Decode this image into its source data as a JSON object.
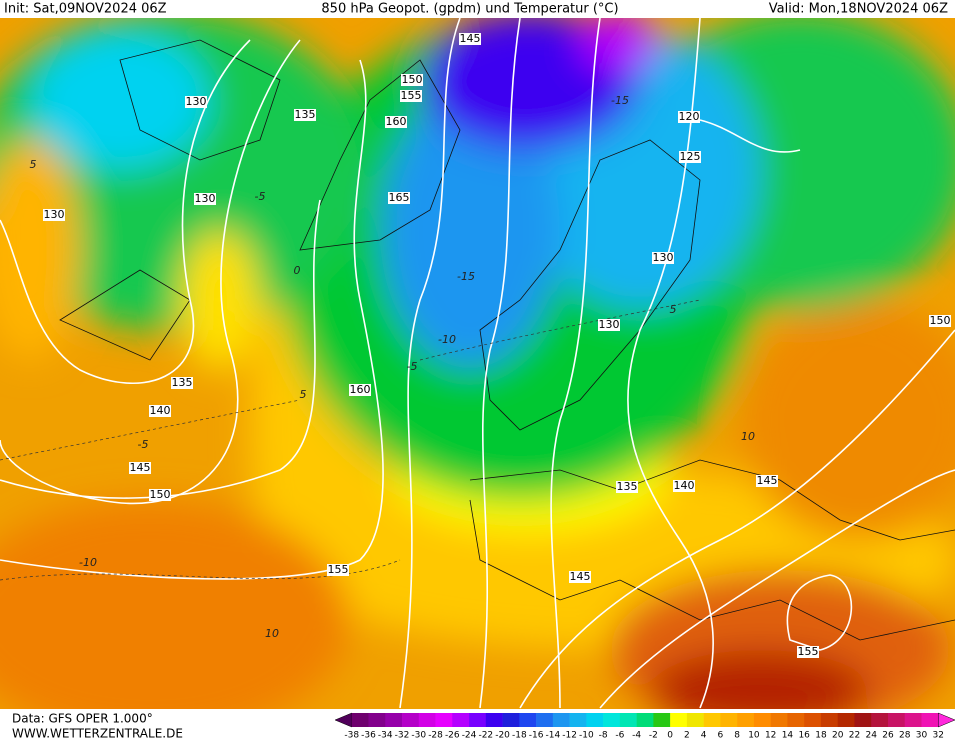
{
  "header": {
    "init": "Init: Sat,09NOV2024 06Z",
    "title": "850 hPa Geopot. (gpdm) und Temperatur (°C)",
    "valid": "Valid: Mon,18NOV2024 06Z"
  },
  "map": {
    "contour_labels": [
      "145",
      "150",
      "155",
      "160",
      "165",
      "130",
      "135",
      "130",
      "130",
      "120",
      "125",
      "130",
      "130",
      "150",
      "135",
      "140",
      "145",
      "150",
      "160",
      "135",
      "140",
      "145",
      "155",
      "145",
      "155"
    ],
    "isotherm_labels": [
      "5",
      "-5",
      "0",
      "-15",
      "-15",
      "-10",
      "-5",
      "5",
      "-5",
      "5",
      "-10",
      "10",
      "10"
    ]
  },
  "footer": {
    "data": "Data: GFS OPER 1.000°",
    "site": "WWW.WETTERZENTRALE.DE"
  },
  "colorbar": {
    "labels": [
      -38,
      -36,
      -34,
      -32,
      -30,
      -28,
      -26,
      -24,
      -22,
      -20,
      -18,
      -16,
      -14,
      -12,
      -10,
      -8,
      -6,
      -4,
      -2,
      0,
      2,
      4,
      6,
      8,
      10,
      12,
      14,
      16,
      18,
      20,
      22,
      24,
      26,
      28,
      30,
      32
    ],
    "colors": [
      "#50005a",
      "#6e006e",
      "#82008c",
      "#9600aa",
      "#b400c8",
      "#d200e6",
      "#e600ff",
      "#b400ff",
      "#7800ff",
      "#3c00f0",
      "#1e1edc",
      "#1e46f0",
      "#1e6ef0",
      "#1e96f0",
      "#14b4f0",
      "#00d2f0",
      "#00e6dc",
      "#00e6b4",
      "#00dc78",
      "#28c814",
      "#ffff00",
      "#f0e600",
      "#ffc800",
      "#ffb400",
      "#ffa000",
      "#ff8c00",
      "#f07800",
      "#e66400",
      "#dc5000",
      "#c83c00",
      "#b42800",
      "#a01414",
      "#b4143c",
      "#c81464",
      "#dc148c",
      "#f014b4",
      "#ff28dc"
    ]
  }
}
